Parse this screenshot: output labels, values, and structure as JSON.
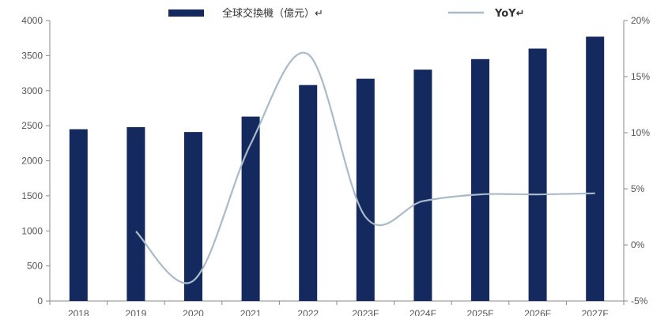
{
  "chart_data": {
    "type": "bar",
    "title": "",
    "xlabel": "",
    "ylabel": "",
    "categories": [
      "2018",
      "2019",
      "2020",
      "2021",
      "2022",
      "2023F",
      "2024F",
      "2025F",
      "2026F",
      "2027F"
    ],
    "series": [
      {
        "name": "全球交換機（億元）↵",
        "type": "bar",
        "axis": "left",
        "color": "#14295e",
        "values": [
          2450,
          2480,
          2410,
          2630,
          3080,
          3170,
          3300,
          3450,
          3600,
          3770
        ]
      },
      {
        "name": "YoY↵",
        "type": "line",
        "axis": "right",
        "color": "#a9bac9",
        "values": [
          null,
          1.2,
          -3.2,
          9.0,
          17.0,
          2.5,
          3.9,
          4.5,
          4.5,
          4.6
        ]
      }
    ],
    "y_left": {
      "ylim": [
        0,
        4000
      ],
      "ticks": [
        "0",
        "500",
        "1000",
        "1500",
        "2000",
        "2500",
        "3000",
        "3500",
        "4000"
      ]
    },
    "y_right": {
      "ylim": [
        -5,
        20
      ],
      "ticks": [
        "-5%",
        "0%",
        "5%",
        "10%",
        "15%",
        "20%"
      ]
    },
    "grid": false,
    "legend": "top-center"
  }
}
